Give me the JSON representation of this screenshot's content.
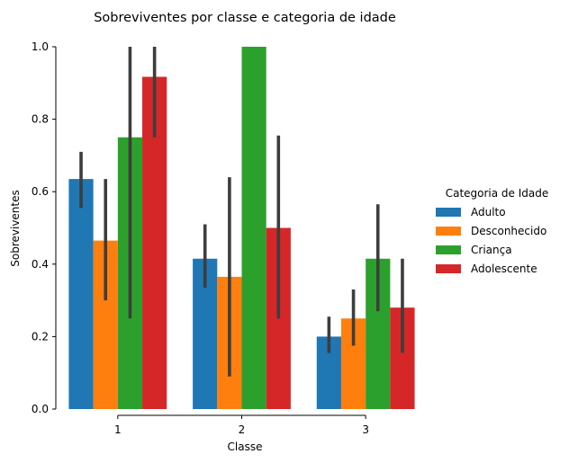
{
  "chart_data": {
    "type": "bar",
    "title": "Sobreviventes por classe e categoria de idade",
    "xlabel": "Classe",
    "ylabel": "Sobreviventes",
    "categories": [
      "1",
      "2",
      "3"
    ],
    "ylim": [
      0,
      1.0
    ],
    "yticks": [
      "0.0",
      "0.2",
      "0.4",
      "0.6",
      "0.8",
      "1.0"
    ],
    "grid": false,
    "legend": {
      "title": "Categoria de Idade",
      "placement": "right"
    },
    "series": [
      {
        "name": "Adulto",
        "color": "#1f77b4",
        "values": [
          0.635,
          0.415,
          0.2
        ],
        "ci": [
          [
            0.555,
            0.71
          ],
          [
            0.335,
            0.51
          ],
          [
            0.155,
            0.255
          ]
        ]
      },
      {
        "name": "Desconhecido",
        "color": "#ff7f0e",
        "values": [
          0.465,
          0.365,
          0.25
        ],
        "ci": [
          [
            0.3,
            0.635
          ],
          [
            0.09,
            0.64
          ],
          [
            0.175,
            0.33
          ]
        ]
      },
      {
        "name": "Criança",
        "color": "#2ca02c",
        "values": [
          0.75,
          1.0,
          0.415
        ],
        "ci": [
          [
            0.25,
            1.0
          ],
          [
            1.0,
            1.0
          ],
          [
            0.27,
            0.565
          ]
        ]
      },
      {
        "name": "Adolescente",
        "color": "#d62728",
        "values": [
          0.917,
          0.5,
          0.28
        ],
        "ci": [
          [
            0.75,
            1.0
          ],
          [
            0.25,
            0.755
          ],
          [
            0.155,
            0.415
          ]
        ]
      }
    ]
  }
}
